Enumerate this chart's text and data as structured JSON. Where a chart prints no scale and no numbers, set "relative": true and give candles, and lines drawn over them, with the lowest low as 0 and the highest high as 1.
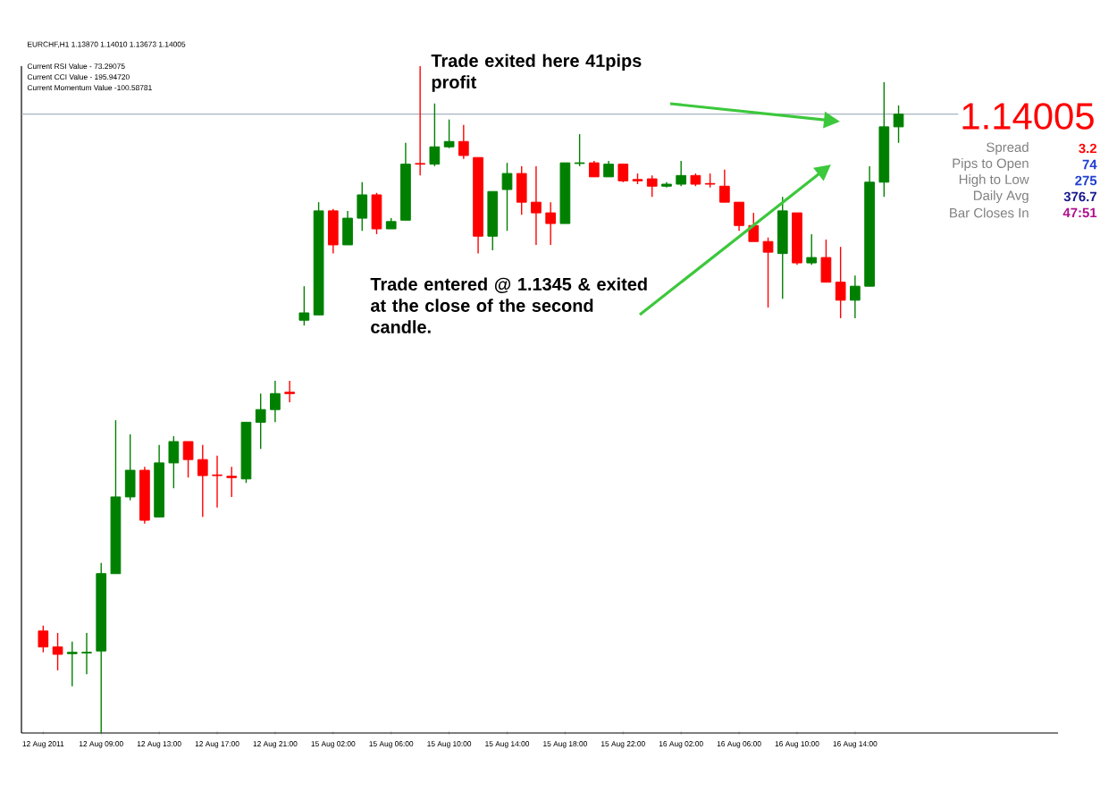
{
  "chart_data": {
    "type": "candlestick",
    "relative": true,
    "title": "EURCHF,H1  1.13870 1.14010 1.13673 1.14005",
    "categories": [
      "12 Aug 2011",
      null,
      null,
      null,
      "12 Aug 09:00",
      null,
      null,
      null,
      "12 Aug 13:00",
      null,
      null,
      null,
      "12 Aug 17:00",
      null,
      null,
      null,
      "12 Aug 21:00",
      null,
      null,
      null,
      "15 Aug 02:00",
      null,
      null,
      null,
      "15 Aug 06:00",
      null,
      null,
      null,
      "15 Aug 10:00",
      null,
      null,
      null,
      "15 Aug 14:00",
      null,
      null,
      null,
      "15 Aug 18:00",
      null,
      null,
      null,
      "15 Aug 22:00",
      null,
      null,
      null,
      "16 Aug 02:00",
      null,
      null,
      null,
      "16 Aug 06:00",
      null,
      null,
      null,
      "16 Aug 10:00",
      null,
      null,
      null,
      "16 Aug 14:00",
      null,
      null,
      null
    ],
    "ohlc": [
      [
        0.153,
        0.161,
        0.121,
        0.129
      ],
      [
        0.129,
        0.15,
        0.094,
        0.118
      ],
      [
        0.119,
        0.137,
        0.07,
        0.121
      ],
      [
        0.12,
        0.15,
        0.088,
        0.121
      ],
      [
        0.123,
        0.255,
        0,
        0.239
      ],
      [
        0.239,
        0.469,
        0.239,
        0.354
      ],
      [
        0.354,
        0.448,
        0.349,
        0.394
      ],
      [
        0.394,
        0.399,
        0.314,
        0.319
      ],
      [
        0.324,
        0.432,
        0.324,
        0.405
      ],
      [
        0.405,
        0.445,
        0.367,
        0.437
      ],
      [
        0.437,
        0.437,
        0.383,
        0.41
      ],
      [
        0.41,
        0.432,
        0.324,
        0.386
      ],
      [
        0.387,
        0.416,
        0.338,
        0.386
      ],
      [
        0.385,
        0.399,
        0.354,
        0.383
      ],
      [
        0.381,
        0.466,
        0.375,
        0.466
      ],
      [
        0.466,
        0.509,
        0.426,
        0.485
      ],
      [
        0.485,
        0.528,
        0.466,
        0.509
      ],
      [
        0.511,
        0.528,
        0.496,
        0.509
      ],
      [
        0.619,
        0.67,
        0.611,
        0.63
      ],
      [
        0.627,
        0.796,
        0.627,
        0.783
      ],
      [
        0.783,
        0.786,
        0.719,
        0.732
      ],
      [
        0.732,
        0.783,
        0.732,
        0.772
      ],
      [
        0.772,
        0.826,
        0.753,
        0.807
      ],
      [
        0.807,
        0.81,
        0.748,
        0.756
      ],
      [
        0.756,
        0.772,
        0.756,
        0.767
      ],
      [
        0.769,
        0.885,
        0.769,
        0.853
      ],
      [
        0.854,
        1,
        0.836,
        0.853
      ],
      [
        0.853,
        0.944,
        0.85,
        0.879
      ],
      [
        0.879,
        0.92,
        0.877,
        0.887
      ],
      [
        0.887,
        0.912,
        0.861,
        0.866
      ],
      [
        0.863,
        0.863,
        0.719,
        0.745
      ],
      [
        0.745,
        0.812,
        0.724,
        0.812
      ],
      [
        0.815,
        0.855,
        0.753,
        0.839
      ],
      [
        0.839,
        0.85,
        0.777,
        0.796
      ],
      [
        0.796,
        0.85,
        0.732,
        0.78
      ],
      [
        0.78,
        0.796,
        0.732,
        0.764
      ],
      [
        0.764,
        0.855,
        0.764,
        0.855
      ],
      [
        0.854,
        0.898,
        0.85,
        0.855
      ],
      [
        0.855,
        0.858,
        0.834,
        0.834
      ],
      [
        0.834,
        0.858,
        0.834,
        0.853
      ],
      [
        0.853,
        0.853,
        0.826,
        0.828
      ],
      [
        0.83,
        0.839,
        0.823,
        0.828
      ],
      [
        0.831,
        0.836,
        0.804,
        0.82
      ],
      [
        0.82,
        0.826,
        0.818,
        0.823
      ],
      [
        0.823,
        0.858,
        0.82,
        0.836
      ],
      [
        0.836,
        0.839,
        0.82,
        0.823
      ],
      [
        0.824,
        0.839,
        0.818,
        0.823
      ],
      [
        0.82,
        0.845,
        0.796,
        0.796
      ],
      [
        0.796,
        0.796,
        0.753,
        0.761
      ],
      [
        0.761,
        0.78,
        0.737,
        0.737
      ],
      [
        0.737,
        0.743,
        0.638,
        0.721
      ],
      [
        0.719,
        0.804,
        0.651,
        0.783
      ],
      [
        0.78,
        0.78,
        0.702,
        0.705
      ],
      [
        0.705,
        0.748,
        0.702,
        0.713
      ],
      [
        0.713,
        0.74,
        0.676,
        0.676
      ],
      [
        0.676,
        0.729,
        0.622,
        0.649
      ],
      [
        0.649,
        0.686,
        0.622,
        0.67
      ],
      [
        0.67,
        0.85,
        0.67,
        0.826
      ],
      [
        0.826,
        0.976,
        0.804,
        0.909
      ],
      [
        0.909,
        0.941,
        0.885,
        0.928
      ]
    ],
    "ref_lines": [
      {
        "axis": "y",
        "value": 0.928,
        "color": "#8fa0b0"
      }
    ],
    "annotations": [
      "Trade exited here 41pips profit",
      "Trade entered @ 1.1345 & exited at the close of the second candle.",
      "Current RSI Value - 73.29075",
      "Current CCI Value - 195.94720",
      "Current Momentum Value -100.58781",
      "1.14005",
      "Spread",
      "3.2",
      "Pips to Open",
      "74",
      "High to Low",
      "275",
      "Daily Avg",
      "376.7",
      "Bar Closes In",
      "47:51"
    ]
  }
}
